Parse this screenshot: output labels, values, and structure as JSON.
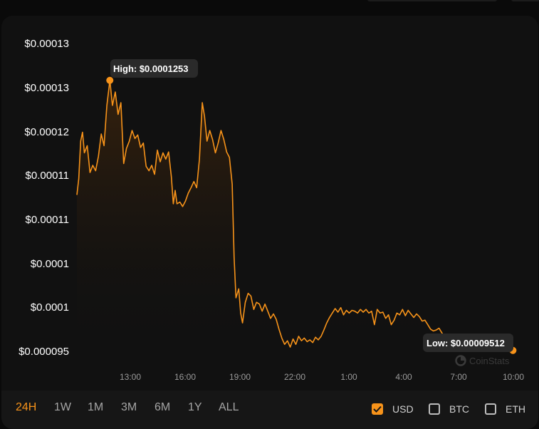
{
  "chart_data": {
    "type": "area",
    "y_tick_labels": [
      "$0.00013",
      "$0.00013",
      "$0.00012",
      "$0.00011",
      "$0.00011",
      "$0.0001",
      "$0.0001",
      "$0.000095"
    ],
    "x_tick_labels": [
      "13:00",
      "16:00",
      "19:00",
      "22:00",
      "1:00",
      "4:00",
      "7:00",
      "10:00"
    ],
    "x_range_hours": [
      10.8,
      34.2
    ],
    "ylim": [
      9.51e-05,
      0.0001295
    ],
    "high": {
      "label": "High: $0.0001253",
      "hour": 12.56,
      "value": 0.0001253
    },
    "low": {
      "label": "Low: $0.00009512",
      "hour": 34.1,
      "value": 9.512e-05
    },
    "watermark": "CoinStats",
    "line_color": "#f7931a",
    "series": [
      {
        "values": [
          [
            10.8,
            0.0001125
          ],
          [
            10.9,
            0.0001143
          ],
          [
            11.0,
            0.0001185
          ],
          [
            11.1,
            0.0001195
          ],
          [
            11.2,
            0.0001172
          ],
          [
            11.35,
            0.000118
          ],
          [
            11.5,
            0.000115
          ],
          [
            11.65,
            0.0001158
          ],
          [
            11.8,
            0.0001152
          ],
          [
            11.95,
            0.0001168
          ],
          [
            12.1,
            0.0001193
          ],
          [
            12.25,
            0.000118
          ],
          [
            12.4,
            0.0001225
          ],
          [
            12.56,
            0.0001253
          ],
          [
            12.7,
            0.0001225
          ],
          [
            12.85,
            0.000124
          ],
          [
            13.0,
            0.0001215
          ],
          [
            13.15,
            0.0001228
          ],
          [
            13.3,
            0.000116
          ],
          [
            13.45,
            0.0001177
          ],
          [
            13.6,
            0.0001185
          ],
          [
            13.75,
            0.0001197
          ],
          [
            13.9,
            0.0001188
          ],
          [
            14.05,
            0.0001192
          ],
          [
            14.2,
            0.0001178
          ],
          [
            14.35,
            0.0001183
          ],
          [
            14.5,
            0.0001157
          ],
          [
            14.65,
            0.0001152
          ],
          [
            14.8,
            0.0001158
          ],
          [
            14.95,
            0.0001148
          ],
          [
            15.1,
            0.0001175
          ],
          [
            15.25,
            0.0001162
          ],
          [
            15.4,
            0.0001172
          ],
          [
            15.55,
            0.0001165
          ],
          [
            15.7,
            0.0001173
          ],
          [
            15.85,
            0.0001145
          ],
          [
            15.95,
            0.0001115
          ],
          [
            16.05,
            0.000113
          ],
          [
            16.15,
            0.0001115
          ],
          [
            16.3,
            0.0001117
          ],
          [
            16.45,
            0.0001112
          ],
          [
            16.6,
            0.0001118
          ],
          [
            16.75,
            0.0001127
          ],
          [
            16.9,
            0.0001133
          ],
          [
            17.05,
            0.000114
          ],
          [
            17.2,
            0.0001133
          ],
          [
            17.35,
            0.0001165
          ],
          [
            17.5,
            0.0001228
          ],
          [
            17.62,
            0.0001213
          ],
          [
            17.75,
            0.0001185
          ],
          [
            17.9,
            0.0001197
          ],
          [
            18.05,
            0.0001187
          ],
          [
            18.2,
            0.0001172
          ],
          [
            18.35,
            0.0001183
          ],
          [
            18.5,
            0.0001197
          ],
          [
            18.65,
            0.0001187
          ],
          [
            18.8,
            0.0001173
          ],
          [
            18.95,
            0.0001167
          ],
          [
            19.1,
            0.0001137
          ],
          [
            19.2,
            0.0001055
          ],
          [
            19.3,
            0.000101
          ],
          [
            19.45,
            0.000102
          ],
          [
            19.55,
            9.93e-05
          ],
          [
            19.65,
            9.82e-05
          ],
          [
            19.8,
            0.0001005
          ],
          [
            19.95,
            0.0001015
          ],
          [
            20.1,
            0.0001012
          ],
          [
            20.25,
            9.97e-05
          ],
          [
            20.4,
            0.0001005
          ],
          [
            20.55,
            0.0001003
          ],
          [
            20.7,
            9.95e-05
          ],
          [
            20.85,
            0.0001003
          ],
          [
            21.0,
            9.95e-05
          ],
          [
            21.15,
            9.87e-05
          ],
          [
            21.3,
            9.92e-05
          ],
          [
            21.45,
            9.86e-05
          ],
          [
            21.6,
            9.75e-05
          ],
          [
            21.75,
            9.65e-05
          ],
          [
            21.9,
            9.58e-05
          ],
          [
            22.05,
            9.62e-05
          ],
          [
            22.2,
            9.55e-05
          ],
          [
            22.35,
            9.64e-05
          ],
          [
            22.5,
            9.58e-05
          ],
          [
            22.65,
            9.67e-05
          ],
          [
            22.8,
            9.62e-05
          ],
          [
            22.95,
            9.65e-05
          ],
          [
            23.1,
            9.61e-05
          ],
          [
            23.25,
            9.63e-05
          ],
          [
            23.4,
            9.6e-05
          ],
          [
            23.55,
            9.66e-05
          ],
          [
            23.7,
            9.63e-05
          ],
          [
            23.85,
            9.67e-05
          ],
          [
            24.0,
            9.74e-05
          ],
          [
            24.15,
            9.82e-05
          ],
          [
            24.3,
            9.88e-05
          ],
          [
            24.45,
            9.93e-05
          ],
          [
            24.6,
            9.98e-05
          ],
          [
            24.75,
            9.94e-05
          ],
          [
            24.9,
            9.99e-05
          ],
          [
            25.05,
            9.91e-05
          ],
          [
            25.2,
            9.96e-05
          ],
          [
            25.35,
            9.93e-05
          ],
          [
            25.5,
            9.96e-05
          ],
          [
            25.65,
            9.95e-05
          ],
          [
            25.8,
            9.93e-05
          ],
          [
            25.95,
            9.97e-05
          ],
          [
            26.1,
            9.94e-05
          ],
          [
            26.25,
            9.97e-05
          ],
          [
            26.4,
            9.93e-05
          ],
          [
            26.55,
            9.95e-05
          ],
          [
            26.7,
            9.8e-05
          ],
          [
            26.85,
            9.97e-05
          ],
          [
            27.0,
            9.93e-05
          ],
          [
            27.15,
            9.94e-05
          ],
          [
            27.3,
            9.87e-05
          ],
          [
            27.45,
            9.91e-05
          ],
          [
            27.6,
            9.8e-05
          ],
          [
            27.75,
            9.85e-05
          ],
          [
            27.9,
            9.93e-05
          ],
          [
            28.05,
            9.91e-05
          ],
          [
            28.2,
            9.97e-05
          ],
          [
            28.35,
            9.9e-05
          ],
          [
            28.5,
            9.96e-05
          ],
          [
            28.65,
            9.92e-05
          ],
          [
            28.8,
            9.88e-05
          ],
          [
            28.95,
            9.92e-05
          ],
          [
            29.1,
            9.89e-05
          ],
          [
            29.25,
            9.84e-05
          ],
          [
            29.4,
            9.85e-05
          ],
          [
            29.55,
            9.8e-05
          ],
          [
            29.7,
            9.75e-05
          ],
          [
            29.85,
            9.73e-05
          ],
          [
            30.0,
            9.74e-05
          ],
          [
            30.15,
            9.76e-05
          ],
          [
            30.3,
            9.71e-05
          ],
          [
            30.45,
            9.66e-05
          ],
          [
            30.6,
            9.63e-05
          ]
        ]
      }
    ]
  },
  "range_tabs": [
    {
      "label": "24H",
      "active": true
    },
    {
      "label": "1W",
      "active": false
    },
    {
      "label": "1M",
      "active": false
    },
    {
      "label": "3M",
      "active": false
    },
    {
      "label": "6M",
      "active": false
    },
    {
      "label": "1Y",
      "active": false
    },
    {
      "label": "ALL",
      "active": false
    }
  ],
  "currencies": [
    {
      "label": "USD",
      "checked": true
    },
    {
      "label": "BTC",
      "checked": false
    },
    {
      "label": "ETH",
      "checked": false
    }
  ]
}
